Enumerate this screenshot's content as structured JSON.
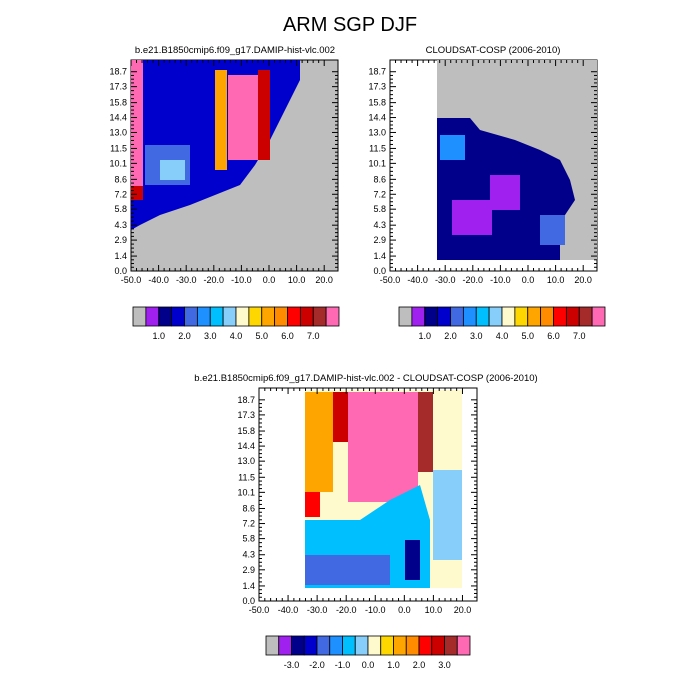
{
  "figure": {
    "title": "ARM SGP DJF"
  },
  "colors": {
    "missing": "#bebebe",
    "frame": "#000000"
  },
  "chart_data": [
    {
      "type": "heatmap",
      "title": "b.e21.B1850cmip6.f09_g17.DAMIP-hist-vlc.002",
      "x_ticks": [
        "-50.0",
        "-40.0",
        "-30.0",
        "-20.0",
        "-10.0",
        "0.0",
        "10.0",
        "20.0"
      ],
      "y_ticks": [
        "0.0",
        "1.4",
        "2.9",
        "4.3",
        "5.8",
        "7.2",
        "8.6",
        "10.1",
        "11.5",
        "13.0",
        "14.4",
        "15.8",
        "17.3",
        "18.7"
      ],
      "xlim": [
        -50,
        25
      ],
      "ylim": [
        0,
        19.8
      ],
      "colorbar_labels": [
        "1.0",
        "2.0",
        "3.0",
        "4.0",
        "5.0",
        "6.0",
        "7.0"
      ],
      "colorbar_colors": [
        "#bebebe",
        "#a020f0",
        "#00008b",
        "#0000cd",
        "#4169e1",
        "#1e90ff",
        "#00bfff",
        "#87cefa",
        "#fffacd",
        "#ffd700",
        "#ffa500",
        "#ff8c00",
        "#ff0000",
        "#cd0000",
        "#a52a2a",
        "#ff69b4"
      ],
      "grid": false
    },
    {
      "type": "heatmap",
      "title": "CLOUDSAT-COSP (2006-2010)",
      "x_ticks": [
        "-50.0",
        "-40.0",
        "-30.0",
        "-20.0",
        "-10.0",
        "0.0",
        "10.0",
        "20.0"
      ],
      "y_ticks": [
        "0.0",
        "1.4",
        "2.9",
        "4.3",
        "5.8",
        "7.2",
        "8.6",
        "10.1",
        "11.5",
        "13.0",
        "14.4",
        "15.8",
        "17.3",
        "18.7"
      ],
      "xlim": [
        -50,
        25
      ],
      "ylim": [
        0,
        19.8
      ],
      "colorbar_labels": [
        "1.0",
        "2.0",
        "3.0",
        "4.0",
        "5.0",
        "6.0",
        "7.0"
      ],
      "colorbar_colors": [
        "#bebebe",
        "#a020f0",
        "#00008b",
        "#0000cd",
        "#4169e1",
        "#1e90ff",
        "#00bfff",
        "#87cefa",
        "#fffacd",
        "#ffd700",
        "#ffa500",
        "#ff8c00",
        "#ff0000",
        "#cd0000",
        "#a52a2a",
        "#ff69b4"
      ],
      "grid": false
    },
    {
      "type": "heatmap",
      "title": "b.e21.B1850cmip6.f09_g17.DAMIP-hist-vlc.002 - CLOUDSAT-COSP (2006-2010)",
      "x_ticks": [
        "-50.0",
        "-40.0",
        "-30.0",
        "-20.0",
        "-10.0",
        "0.0",
        "10.0",
        "20.0"
      ],
      "y_ticks": [
        "0.0",
        "1.4",
        "2.9",
        "4.3",
        "5.8",
        "7.2",
        "8.6",
        "10.1",
        "11.5",
        "13.0",
        "14.4",
        "15.8",
        "17.3",
        "18.7"
      ],
      "xlim": [
        -50,
        25
      ],
      "ylim": [
        0,
        19.8
      ],
      "colorbar_labels": [
        "-3.0",
        "-2.0",
        "-1.0",
        "0.0",
        "1.0",
        "2.0",
        "3.0"
      ],
      "colorbar_colors": [
        "#bebebe",
        "#a020f0",
        "#00008b",
        "#0000cd",
        "#4169e1",
        "#1e90ff",
        "#00bfff",
        "#87cefa",
        "#fffacd",
        "#ffd700",
        "#ffa500",
        "#ff8c00",
        "#ff0000",
        "#cd0000",
        "#a52a2a",
        "#ff69b4"
      ],
      "grid": false
    }
  ]
}
